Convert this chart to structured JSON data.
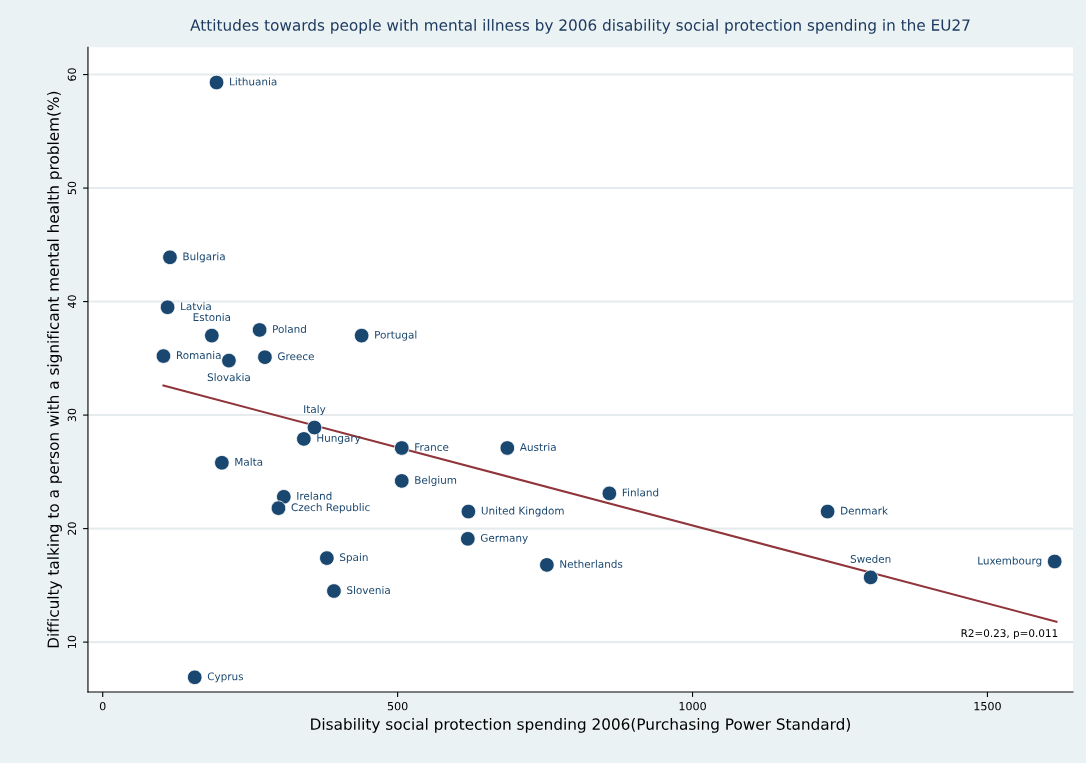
{
  "chart_data": {
    "type": "scatter",
    "title": "Attitudes towards people with mental illness by 2006 disability social protection spending in the EU27",
    "xlabel": "Disability social protection spending 2006(Purchasing Power Standard)",
    "ylabel": "Difficulty talking to a person with a significant mental health problem(%)",
    "xlim": [
      -25,
      1645
    ],
    "ylim": [
      5.6,
      62.4
    ],
    "xticks": [
      0,
      500,
      1000,
      1500
    ],
    "yticks": [
      10,
      20,
      30,
      40,
      50,
      60
    ],
    "grid": "y",
    "legend": false,
    "marker": "circle",
    "series": [
      {
        "color": "#1a476f",
        "x": [
          193,
          114,
          110,
          185,
          266,
          439,
          103,
          214,
          275,
          359,
          341,
          507,
          686,
          202,
          507,
          859,
          307,
          298,
          620,
          1229,
          619,
          380,
          753,
          1614,
          1302,
          392,
          156
        ],
        "values": [
          59.3,
          43.9,
          39.5,
          37.0,
          37.5,
          37.0,
          35.2,
          34.8,
          35.1,
          28.9,
          27.9,
          27.1,
          27.1,
          25.8,
          24.2,
          23.1,
          22.8,
          21.8,
          21.5,
          21.5,
          19.1,
          17.4,
          16.8,
          17.1,
          15.7,
          14.5,
          6.9
        ]
      },
      {
        "type": "line",
        "color": "#90353b",
        "x": [
          103,
          1617
        ],
        "values": [
          32.6,
          11.8
        ],
        "marker": "none"
      }
    ],
    "annotations": [
      {
        "text": "Lithuania",
        "x": 193,
        "y": 59.3
      },
      {
        "text": "Bulgaria",
        "x": 114,
        "y": 43.9
      },
      {
        "text": "Latvia",
        "x": 110,
        "y": 39.5
      },
      {
        "text": "Estonia",
        "x": 185,
        "y": 37.0
      },
      {
        "text": "Poland",
        "x": 266,
        "y": 37.5
      },
      {
        "text": "Portugal",
        "x": 439,
        "y": 37.0
      },
      {
        "text": "Romania",
        "x": 103,
        "y": 35.2
      },
      {
        "text": "Slovakia",
        "x": 214,
        "y": 34.8
      },
      {
        "text": "Greece",
        "x": 275,
        "y": 35.1
      },
      {
        "text": "Italy",
        "x": 359,
        "y": 28.9
      },
      {
        "text": "Hungary",
        "x": 341,
        "y": 27.9
      },
      {
        "text": "France",
        "x": 507,
        "y": 27.1
      },
      {
        "text": "Austria",
        "x": 686,
        "y": 27.1
      },
      {
        "text": "Malta",
        "x": 202,
        "y": 25.8
      },
      {
        "text": "Belgium",
        "x": 507,
        "y": 24.2
      },
      {
        "text": "Finland",
        "x": 859,
        "y": 23.1
      },
      {
        "text": "Ireland",
        "x": 307,
        "y": 22.8
      },
      {
        "text": "Czech Republic",
        "x": 298,
        "y": 21.8
      },
      {
        "text": "United Kingdom",
        "x": 620,
        "y": 21.5
      },
      {
        "text": "Denmark",
        "x": 1229,
        "y": 21.5
      },
      {
        "text": "Germany",
        "x": 619,
        "y": 19.1
      },
      {
        "text": "Spain",
        "x": 380,
        "y": 17.4
      },
      {
        "text": "Netherlands",
        "x": 753,
        "y": 16.8
      },
      {
        "text": "Luxembourg",
        "x": 1614,
        "y": 17.1
      },
      {
        "text": "Sweden",
        "x": 1302,
        "y": 15.7
      },
      {
        "text": "Slovenia",
        "x": 392,
        "y": 14.5
      },
      {
        "text": "Cyprus",
        "x": 156,
        "y": 6.9
      },
      "R2=0.23, p=0.011"
    ]
  }
}
